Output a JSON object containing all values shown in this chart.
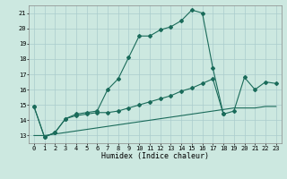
{
  "xlabel": "Humidex (Indice chaleur)",
  "xlim": [
    -0.5,
    23.5
  ],
  "ylim": [
    12.5,
    21.5
  ],
  "xticks": [
    0,
    1,
    2,
    3,
    4,
    5,
    6,
    7,
    8,
    9,
    10,
    11,
    12,
    13,
    14,
    15,
    16,
    17,
    18,
    19,
    20,
    21,
    22,
    23
  ],
  "yticks": [
    13,
    14,
    15,
    16,
    17,
    18,
    19,
    20,
    21
  ],
  "background_color": "#cce8e0",
  "grid_color": "#aacccc",
  "line_color": "#1a6b5a",
  "line1_x": [
    0,
    1,
    2,
    3,
    4,
    5,
    6,
    7,
    8,
    9,
    10,
    11,
    12,
    13,
    14,
    15,
    16,
    17,
    18
  ],
  "line1_y": [
    14.9,
    12.9,
    13.2,
    14.1,
    14.4,
    14.5,
    14.6,
    16.0,
    16.7,
    18.1,
    19.5,
    19.5,
    19.9,
    20.1,
    20.5,
    21.2,
    21.0,
    17.4,
    14.4
  ],
  "line2_x": [
    0,
    1,
    2,
    3,
    4,
    5,
    6,
    7,
    8,
    9,
    10,
    11,
    12,
    13,
    14,
    15,
    16,
    17,
    18,
    19,
    20,
    21,
    22,
    23
  ],
  "line2_y": [
    14.9,
    12.9,
    13.2,
    14.1,
    14.3,
    14.4,
    14.5,
    14.5,
    14.6,
    14.8,
    15.0,
    15.2,
    15.4,
    15.6,
    15.9,
    16.1,
    16.4,
    16.7,
    14.4,
    14.6,
    16.8,
    16.0,
    16.5,
    16.4
  ],
  "line3_x": [
    0,
    1,
    2,
    3,
    4,
    5,
    6,
    7,
    8,
    9,
    10,
    11,
    12,
    13,
    14,
    15,
    16,
    17,
    18,
    19,
    20,
    21,
    22,
    23
  ],
  "line3_y": [
    13.0,
    13.0,
    13.1,
    13.2,
    13.3,
    13.4,
    13.5,
    13.6,
    13.7,
    13.8,
    13.9,
    14.0,
    14.1,
    14.2,
    14.3,
    14.4,
    14.5,
    14.6,
    14.7,
    14.8,
    14.8,
    14.8,
    14.9,
    14.9
  ],
  "markersize": 2.0,
  "linewidth": 0.8,
  "tick_fontsize": 5.0,
  "xlabel_fontsize": 6.0
}
